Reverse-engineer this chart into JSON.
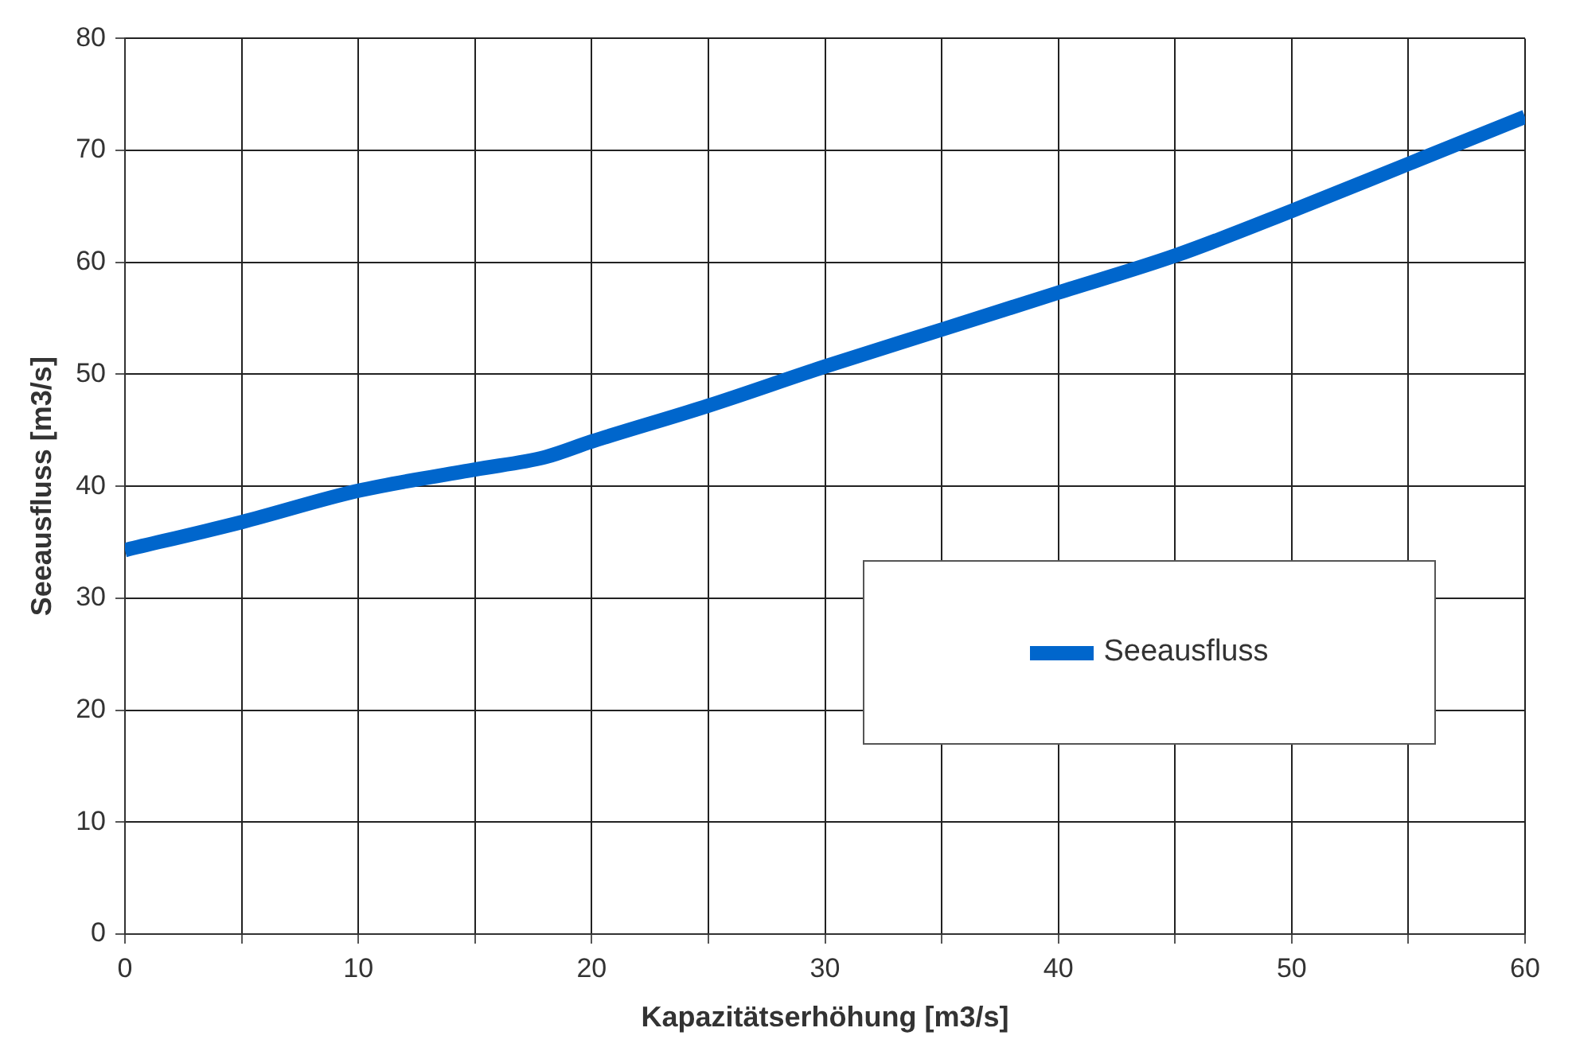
{
  "chart_data": {
    "type": "line",
    "xlabel": "Kapazitätserhöhung [m3/s]",
    "ylabel": "Seeausfluss [m3/s]",
    "series": [
      {
        "name": "Seeausfluss",
        "color": "#0066cc",
        "x": [
          0,
          5,
          10,
          15,
          18,
          20,
          25,
          30,
          35,
          40,
          45,
          50,
          55,
          60
        ],
        "values": [
          34.3,
          36.8,
          39.6,
          41.5,
          42.6,
          44,
          47.2,
          50.7,
          54,
          57.3,
          60.6,
          64.6,
          68.8,
          73
        ]
      }
    ],
    "xlim": [
      0,
      60
    ],
    "xticks": [
      0,
      {
        "value": 5,
        "label": null
      },
      10,
      {
        "value": 15,
        "label": null
      },
      20,
      {
        "value": 25,
        "label": null
      },
      30,
      {
        "value": 35,
        "label": null
      },
      40,
      {
        "value": 45,
        "label": null
      },
      50,
      {
        "value": 55,
        "label": null
      },
      60
    ],
    "ylim": [
      0,
      80
    ],
    "yticks": [
      0,
      10,
      20,
      30,
      40,
      50,
      60,
      70,
      80
    ],
    "grid": true,
    "legend": "bottom right",
    "marker": "none",
    "line_style": "solid"
  }
}
